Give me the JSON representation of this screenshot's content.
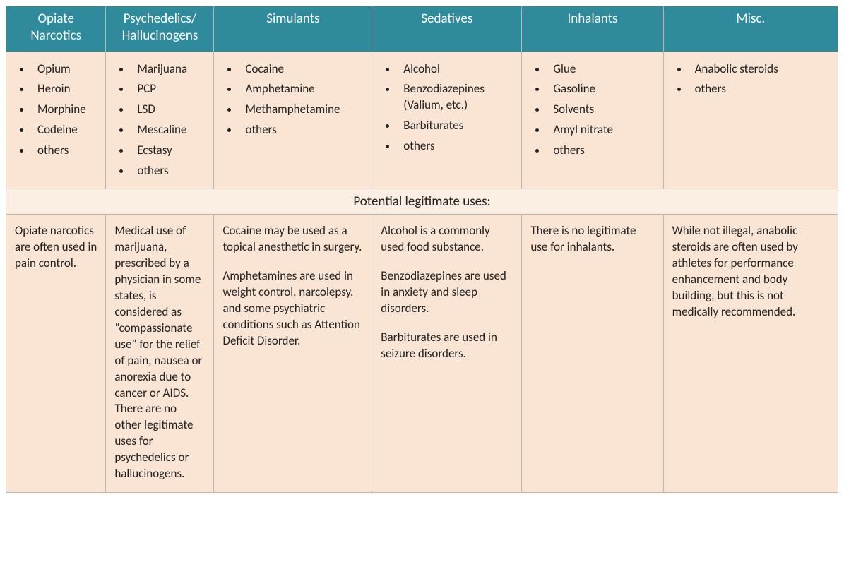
{
  "table": {
    "type": "table",
    "header_bg": "#2f8a9b",
    "header_fg": "#ffffff",
    "cell_bg": "#fae4d3",
    "section_bg": "#fbefe3",
    "border_color": "#b9b6af",
    "text_color": "#222222",
    "header_fontsize": 19,
    "body_fontsize": 17,
    "col_widths_pct": [
      12,
      13,
      19,
      18,
      17,
      21
    ],
    "columns": [
      {
        "title_lines": [
          "Opiate",
          "Narcotics"
        ]
      },
      {
        "title_lines": [
          "Psychedelics/",
          "Hallucinogens"
        ]
      },
      {
        "title_lines": [
          "Simulants"
        ]
      },
      {
        "title_lines": [
          "Sedatives"
        ]
      },
      {
        "title_lines": [
          "Inhalants"
        ]
      },
      {
        "title_lines": [
          "Misc."
        ]
      }
    ],
    "examples": [
      [
        "Opium",
        "Heroin",
        "Morphine",
        "Codeine",
        "others"
      ],
      [
        "Marijuana",
        "PCP",
        "LSD",
        "Mescaline",
        "Ecstasy",
        "others"
      ],
      [
        "Cocaine",
        "Amphetamine",
        "Methamphetamine",
        "others"
      ],
      [
        "Alcohol",
        "Benzodiazepines (Valium, etc.)",
        "Barbiturates",
        "others"
      ],
      [
        "Glue",
        "Gasoline",
        "Solvents",
        "Amyl nitrate",
        "others"
      ],
      [
        "Anabolic steroids",
        "others"
      ]
    ],
    "section_title": "Potential legitimate uses:",
    "uses": [
      [
        "Opiate narcotics are often used in pain control."
      ],
      [
        "Medical use of marijuana, prescribed by a physician in some states, is considered as “compassionate use” for the relief of pain, nausea or anorexia due to cancer or AIDS. There are no other legitimate uses for psychedelics or hallucinogens."
      ],
      [
        "Cocaine may be used as a topical anesthetic in surgery.",
        "Amphetamines are used in weight control, narcolepsy, and some psychiatric conditions such as Attention Deficit Disorder."
      ],
      [
        "Alcohol is a commonly used food substance.",
        "Benzodiazepines are used in anxiety and sleep disorders.",
        "Barbiturates are used in seizure disorders."
      ],
      [
        "There is no legitimate use for inhalants."
      ],
      [
        "While not illegal, anabolic steroids are often used by athletes for performance enhancement and body building, but this is not medically recommended."
      ]
    ]
  }
}
